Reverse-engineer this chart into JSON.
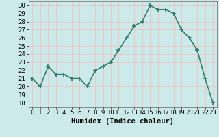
{
  "x": [
    0,
    1,
    2,
    3,
    4,
    5,
    6,
    7,
    8,
    9,
    10,
    11,
    12,
    13,
    14,
    15,
    16,
    17,
    18,
    19,
    20,
    21,
    22,
    23
  ],
  "y": [
    21,
    20,
    22.5,
    21.5,
    21.5,
    21,
    21,
    20,
    22,
    22.5,
    23,
    24.5,
    26,
    27.5,
    28,
    30,
    29.5,
    29.5,
    29,
    27,
    26,
    24.5,
    21,
    18
  ],
  "line_color": "#2e7d6e",
  "marker": "+",
  "marker_size": 4,
  "marker_linewidth": 1.2,
  "bg_color": "#cceaea",
  "grid_color": "#e8c8c8",
  "xlabel": "Humidex (Indice chaleur)",
  "xlabel_fontsize": 7.5,
  "ylabel_ticks": [
    18,
    19,
    20,
    21,
    22,
    23,
    24,
    25,
    26,
    27,
    28,
    29,
    30
  ],
  "xlim": [
    -0.5,
    23.5
  ],
  "ylim": [
    17.5,
    30.5
  ],
  "xtick_labels": [
    "0",
    "1",
    "2",
    "3",
    "4",
    "5",
    "6",
    "7",
    "8",
    "9",
    "10",
    "11",
    "12",
    "13",
    "14",
    "15",
    "16",
    "17",
    "18",
    "19",
    "20",
    "21",
    "22",
    "23"
  ],
  "tick_fontsize": 6.5,
  "linewidth": 1.2
}
